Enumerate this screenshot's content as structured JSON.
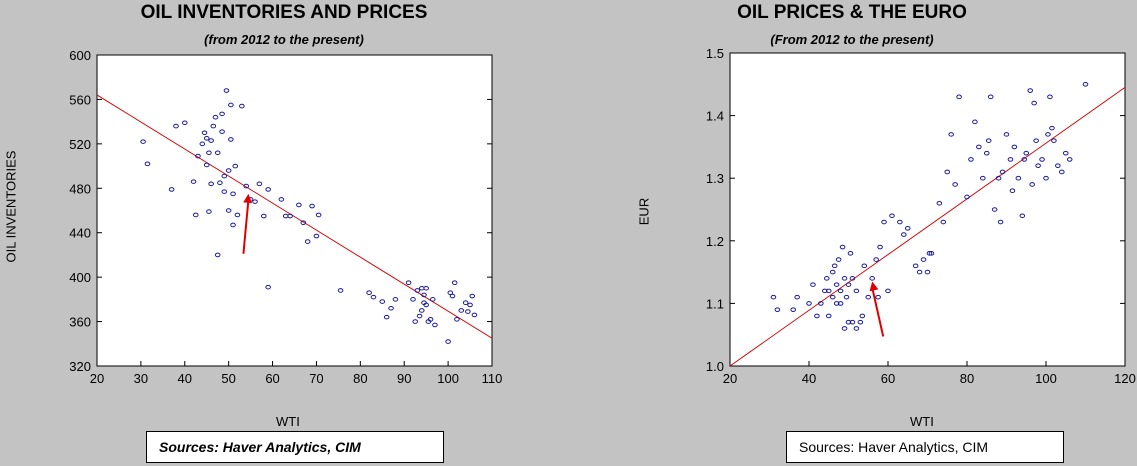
{
  "chart_data": [
    {
      "type": "scatter",
      "title": "OIL INVENTORIES AND PRICES",
      "subtitle": "(from 2012 to the present)",
      "xlabel": "WTI",
      "ylabel": "OIL INVENTORIES",
      "xlim": [
        20,
        110
      ],
      "ylim": [
        320,
        600
      ],
      "xticks": [
        20,
        30,
        40,
        50,
        60,
        70,
        80,
        90,
        100,
        110
      ],
      "yticks": [
        320,
        360,
        400,
        440,
        480,
        520,
        560,
        600
      ],
      "grid": false,
      "point_color": "#1a1aa0",
      "trend_color": "#d01010",
      "arrow_color": "#e00000",
      "trend_line": {
        "x": [
          20,
          110
        ],
        "y": [
          564,
          345
        ]
      },
      "arrow_point": {
        "x": 54.5,
        "y": 475
      },
      "source": "Sources: Haver Analytics, CIM",
      "x": [
        30.5,
        31.5,
        37,
        38,
        40,
        42,
        42.5,
        43,
        44,
        44.5,
        45,
        45,
        45.5,
        45.5,
        46,
        46,
        46.5,
        47,
        47.5,
        47.5,
        48,
        48.5,
        48.5,
        49,
        49,
        49.5,
        50,
        50,
        50.5,
        50.5,
        51,
        51,
        51.5,
        52,
        53,
        54,
        55,
        56,
        57,
        58,
        59,
        59,
        62,
        63,
        64,
        66,
        67,
        68,
        69,
        70,
        70.5,
        75.5,
        82,
        83,
        85,
        86,
        87,
        88,
        91,
        92,
        92.5,
        93,
        93.5,
        94,
        94,
        94.5,
        94.5,
        95,
        95,
        95.5,
        96,
        96.5,
        97,
        100,
        100.5,
        101,
        101.5,
        102,
        103,
        104,
        104.5,
        105,
        105.5,
        106
      ],
      "y": [
        522,
        502,
        479,
        536,
        539,
        486,
        456,
        509,
        520,
        530,
        501,
        525,
        459,
        512,
        523,
        484,
        536,
        544,
        420,
        512,
        485,
        531,
        547,
        477,
        491,
        568,
        460,
        496,
        555,
        524,
        475,
        447,
        500,
        456,
        554,
        482,
        470,
        468,
        484,
        455,
        479,
        391,
        470,
        455,
        455,
        465,
        449,
        432,
        464,
        437,
        456,
        388,
        386,
        382,
        378,
        364,
        372,
        380,
        395,
        380,
        360,
        388,
        365,
        390,
        370,
        384,
        377,
        375,
        390,
        360,
        362,
        380,
        357,
        342,
        386,
        383,
        395,
        362,
        370,
        377,
        369,
        375,
        383,
        366
      ],
      "trend_label": "",
      "legend": "none"
    },
    {
      "type": "scatter",
      "title": "OIL PRICES & THE EURO",
      "subtitle": "(From 2012 to the present)",
      "xlabel": "WTI",
      "ylabel": "EUR",
      "xlim": [
        20,
        120
      ],
      "ylim": [
        1.0,
        1.5
      ],
      "xticks": [
        20,
        40,
        60,
        80,
        100,
        120
      ],
      "yticks": [
        1.0,
        1.1,
        1.2,
        1.3,
        1.4,
        1.5
      ],
      "grid": false,
      "point_color": "#1a1aa0",
      "trend_color": "#d01010",
      "arrow_color": "#e00000",
      "trend_line": {
        "x": [
          20,
          120
        ],
        "y": [
          1.0,
          1.445
        ]
      },
      "arrow_point": {
        "x": 56,
        "y": 1.135
      },
      "source": "Sources: Haver Analytics, CIM",
      "x": [
        31,
        32,
        36,
        37,
        40,
        41,
        42,
        43,
        44,
        44.5,
        45,
        45,
        46,
        46,
        46.5,
        47,
        47,
        47.5,
        48,
        48,
        48.5,
        49,
        49,
        49.5,
        50,
        50,
        50.5,
        51,
        51,
        52,
        52,
        53,
        53.5,
        54,
        55,
        56,
        57,
        57.5,
        58,
        59,
        60,
        61,
        63,
        64,
        65,
        67,
        68,
        69,
        70,
        70.5,
        71,
        73,
        74,
        75,
        76,
        77,
        78,
        80,
        81,
        82,
        83,
        84,
        85,
        85.5,
        86,
        87,
        88,
        88.5,
        89,
        90,
        91,
        91.5,
        92,
        93,
        94,
        94.5,
        95,
        96,
        96.5,
        97,
        97.5,
        98,
        99,
        100,
        100.5,
        101,
        101.5,
        102,
        103,
        104,
        105,
        106,
        110
      ],
      "y": [
        1.11,
        1.09,
        1.09,
        1.11,
        1.1,
        1.13,
        1.08,
        1.1,
        1.12,
        1.14,
        1.08,
        1.12,
        1.15,
        1.11,
        1.16,
        1.1,
        1.13,
        1.17,
        1.12,
        1.1,
        1.19,
        1.06,
        1.14,
        1.11,
        1.07,
        1.13,
        1.18,
        1.07,
        1.14,
        1.06,
        1.12,
        1.07,
        1.08,
        1.16,
        1.11,
        1.14,
        1.17,
        1.11,
        1.19,
        1.23,
        1.12,
        1.24,
        1.23,
        1.21,
        1.22,
        1.16,
        1.15,
        1.17,
        1.15,
        1.18,
        1.18,
        1.26,
        1.23,
        1.31,
        1.37,
        1.29,
        1.43,
        1.27,
        1.33,
        1.39,
        1.35,
        1.3,
        1.34,
        1.36,
        1.43,
        1.25,
        1.3,
        1.23,
        1.31,
        1.37,
        1.33,
        1.28,
        1.35,
        1.3,
        1.24,
        1.33,
        1.34,
        1.44,
        1.29,
        1.42,
        1.36,
        1.32,
        1.33,
        1.3,
        1.37,
        1.43,
        1.38,
        1.36,
        1.32,
        1.31,
        1.34,
        1.33,
        1.45
      ],
      "legend": "none"
    }
  ]
}
